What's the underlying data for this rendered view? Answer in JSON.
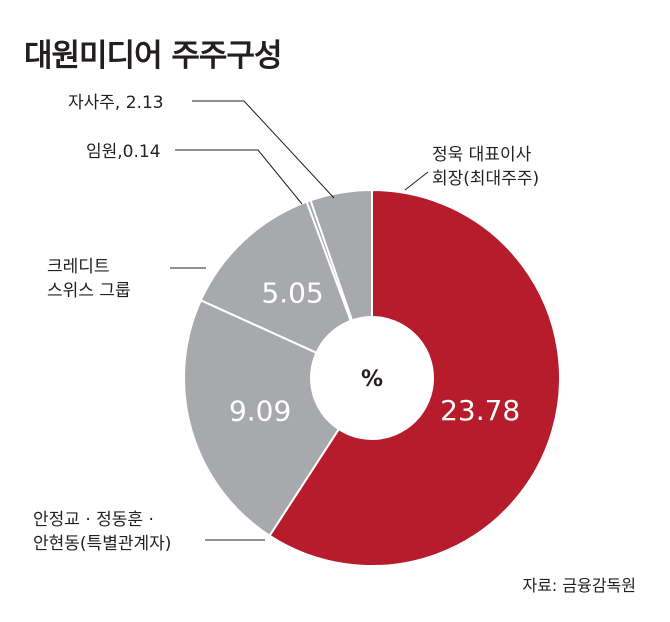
{
  "chart_data": {
    "type": "pie",
    "title": "대원미디어 주주구성",
    "unit": "%",
    "slices": [
      {
        "label_lines": [
          "정욱 대표이사",
          "회장(최대주주)"
        ],
        "value": 23.78,
        "display": "23.78",
        "color": "#b71c2c"
      },
      {
        "label_lines": [
          "안정교 · 정동훈 ·",
          "안현동(특별관계자)"
        ],
        "value": 9.09,
        "display": "9.09",
        "color": "#a7a9ac"
      },
      {
        "label_lines": [
          "크레디트",
          "스위스 그룹"
        ],
        "value": 5.05,
        "display": "5.05",
        "color": "#a7a9ac"
      },
      {
        "label_lines": [
          "임원,0.14"
        ],
        "value": 0.14,
        "display": "",
        "color": "#a7a9ac"
      },
      {
        "label_lines": [
          "자사주, 2.13"
        ],
        "value": 2.13,
        "display": "",
        "color": "#a7a9ac"
      }
    ]
  },
  "source": "자료: 금융감독원"
}
